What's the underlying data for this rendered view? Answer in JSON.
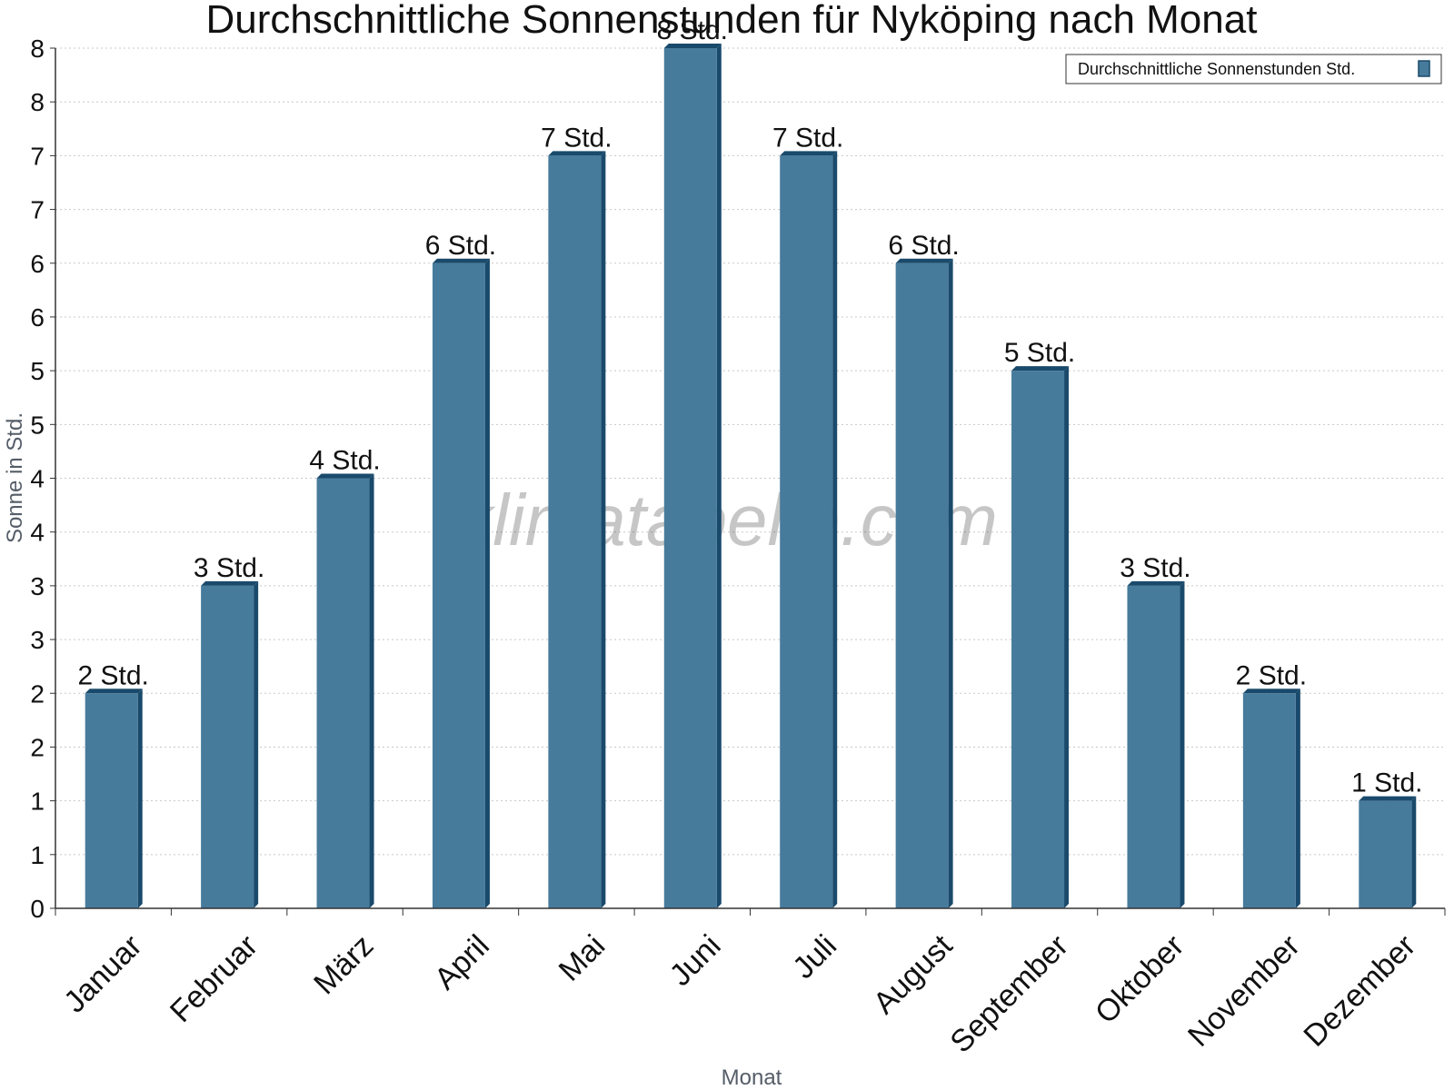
{
  "chart_data": {
    "type": "bar",
    "title": "Durchschnittliche Sonnenstunden für Nyköping nach Monat",
    "xlabel": "Monat",
    "ylabel": "Sonne in Std.",
    "ylim": [
      0,
      8
    ],
    "y_tick_labels": [
      "0",
      "1",
      "1",
      "2",
      "2",
      "3",
      "3",
      "4",
      "4",
      "5",
      "5",
      "6",
      "6",
      "7",
      "7",
      "8",
      "8"
    ],
    "grid": true,
    "legend_position": "top-right",
    "categories": [
      "Januar",
      "Februar",
      "März",
      "April",
      "Mai",
      "Juni",
      "Juli",
      "August",
      "September",
      "Oktober",
      "November",
      "Dezember"
    ],
    "series": [
      {
        "name": "Durchschnittliche Sonnenstunden Std.",
        "values": [
          2,
          3,
          4,
          6,
          7,
          8,
          7,
          6,
          5,
          3,
          2,
          1
        ],
        "labels": [
          "2 Std.",
          "3 Std.",
          "4 Std.",
          "6 Std.",
          "7 Std.",
          "8 Std.",
          "7 Std.",
          "6 Std.",
          "5 Std.",
          "3 Std.",
          "2 Std.",
          "1 Std."
        ],
        "color": "#477b9c",
        "edge_color": "#1a4a6b"
      }
    ],
    "watermark": "klimatabelle.com"
  }
}
